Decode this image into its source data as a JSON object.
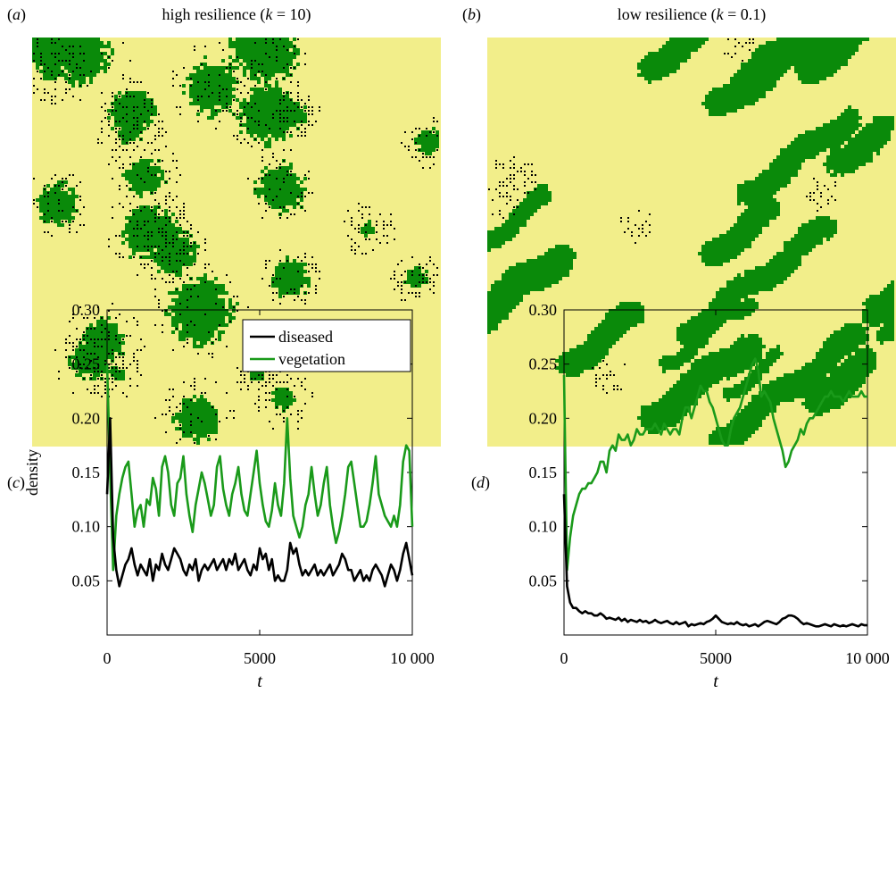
{
  "panels": {
    "a": {
      "label_open": "(",
      "label_letter": "a",
      "label_close": ")",
      "title_pre": "high resilience (",
      "title_var": "k",
      "title_post": " = 10)"
    },
    "b": {
      "label_open": "(",
      "label_letter": "b",
      "label_close": ")",
      "title_pre": "low resilience (",
      "title_var": "k",
      "title_post": " = 0.1)"
    },
    "c": {
      "label_open": "(",
      "label_letter": "c",
      "label_close": ")"
    },
    "d": {
      "label_open": "(",
      "label_letter": "d",
      "label_close": ")"
    }
  },
  "colors": {
    "background_cell": "#f2ee8a",
    "vegetation": "#0a8a0a",
    "diseased": "#000000",
    "vegetation_line": "#1a9a1a",
    "diseased_line": "#000000"
  },
  "chart_data": [
    {
      "id": "c",
      "type": "line",
      "xlabel": "t",
      "ylabel": "density",
      "xlim": [
        0,
        10000
      ],
      "ylim": [
        0,
        0.3
      ],
      "xticks": [
        0,
        5000,
        10000
      ],
      "xtick_labels": [
        "0",
        "5000",
        "10 000"
      ],
      "yticks": [
        0.05,
        0.1,
        0.15,
        0.2,
        0.25,
        0.3
      ],
      "ytick_labels": [
        "0.05",
        "0.10",
        "0.15",
        "0.20",
        "0.25",
        "0.30"
      ],
      "legend": {
        "position": "top-right",
        "entries": [
          "diseased",
          "vegetation"
        ]
      },
      "x": [
        0,
        100,
        200,
        300,
        400,
        500,
        600,
        700,
        800,
        900,
        1000,
        1100,
        1200,
        1300,
        1400,
        1500,
        1600,
        1700,
        1800,
        1900,
        2000,
        2100,
        2200,
        2300,
        2400,
        2500,
        2600,
        2700,
        2800,
        2900,
        3000,
        3100,
        3200,
        3300,
        3400,
        3500,
        3600,
        3700,
        3800,
        3900,
        4000,
        4100,
        4200,
        4300,
        4400,
        4500,
        4600,
        4700,
        4800,
        4900,
        5000,
        5100,
        5200,
        5300,
        5400,
        5500,
        5600,
        5700,
        5800,
        5900,
        6000,
        6100,
        6200,
        6300,
        6400,
        6500,
        6600,
        6700,
        6800,
        6900,
        7000,
        7100,
        7200,
        7300,
        7400,
        7500,
        7600,
        7700,
        7800,
        7900,
        8000,
        8100,
        8200,
        8300,
        8400,
        8500,
        8600,
        8700,
        8800,
        8900,
        9000,
        9100,
        9200,
        9300,
        9400,
        9500,
        9600,
        9700,
        9800,
        9900,
        10000
      ],
      "series": [
        {
          "name": "diseased",
          "values": [
            0.13,
            0.2,
            0.09,
            0.06,
            0.045,
            0.055,
            0.065,
            0.07,
            0.08,
            0.065,
            0.055,
            0.065,
            0.06,
            0.055,
            0.07,
            0.05,
            0.065,
            0.06,
            0.075,
            0.065,
            0.06,
            0.07,
            0.08,
            0.075,
            0.07,
            0.06,
            0.055,
            0.065,
            0.06,
            0.07,
            0.05,
            0.06,
            0.065,
            0.06,
            0.065,
            0.07,
            0.06,
            0.065,
            0.07,
            0.06,
            0.07,
            0.065,
            0.075,
            0.06,
            0.065,
            0.07,
            0.06,
            0.055,
            0.065,
            0.06,
            0.08,
            0.07,
            0.075,
            0.06,
            0.07,
            0.05,
            0.055,
            0.05,
            0.05,
            0.06,
            0.085,
            0.075,
            0.08,
            0.065,
            0.055,
            0.06,
            0.055,
            0.06,
            0.065,
            0.055,
            0.06,
            0.055,
            0.06,
            0.065,
            0.055,
            0.06,
            0.065,
            0.075,
            0.07,
            0.06,
            0.06,
            0.05,
            0.055,
            0.06,
            0.05,
            0.055,
            0.05,
            0.06,
            0.065,
            0.06,
            0.055,
            0.045,
            0.055,
            0.065,
            0.06,
            0.05,
            0.06,
            0.075,
            0.085,
            0.07,
            0.055
          ]
        },
        {
          "name": "vegetation",
          "values": [
            0.25,
            0.15,
            0.06,
            0.11,
            0.13,
            0.145,
            0.155,
            0.16,
            0.13,
            0.1,
            0.115,
            0.12,
            0.1,
            0.125,
            0.12,
            0.145,
            0.135,
            0.11,
            0.155,
            0.165,
            0.15,
            0.12,
            0.11,
            0.14,
            0.145,
            0.165,
            0.13,
            0.11,
            0.095,
            0.12,
            0.135,
            0.15,
            0.14,
            0.125,
            0.11,
            0.12,
            0.155,
            0.165,
            0.135,
            0.12,
            0.11,
            0.13,
            0.14,
            0.155,
            0.13,
            0.115,
            0.11,
            0.13,
            0.15,
            0.17,
            0.14,
            0.12,
            0.105,
            0.1,
            0.115,
            0.14,
            0.12,
            0.11,
            0.14,
            0.2,
            0.145,
            0.11,
            0.1,
            0.09,
            0.1,
            0.12,
            0.13,
            0.155,
            0.13,
            0.11,
            0.12,
            0.14,
            0.155,
            0.12,
            0.1,
            0.085,
            0.095,
            0.11,
            0.13,
            0.155,
            0.16,
            0.14,
            0.12,
            0.1,
            0.1,
            0.105,
            0.12,
            0.14,
            0.165,
            0.13,
            0.12,
            0.11,
            0.105,
            0.1,
            0.11,
            0.1,
            0.12,
            0.16,
            0.175,
            0.17,
            0.1
          ]
        }
      ]
    },
    {
      "id": "d",
      "type": "line",
      "xlabel": "t",
      "ylabel": "",
      "xlim": [
        0,
        10000
      ],
      "ylim": [
        0,
        0.3
      ],
      "xticks": [
        0,
        5000,
        10000
      ],
      "xtick_labels": [
        "0",
        "5000",
        "10 000"
      ],
      "yticks": [
        0.05,
        0.1,
        0.15,
        0.2,
        0.25,
        0.3
      ],
      "ytick_labels": [
        "0.05",
        "0.10",
        "0.15",
        "0.20",
        "0.25",
        "0.30"
      ],
      "x": [
        0,
        100,
        200,
        300,
        400,
        500,
        600,
        700,
        800,
        900,
        1000,
        1100,
        1200,
        1300,
        1400,
        1500,
        1600,
        1700,
        1800,
        1900,
        2000,
        2100,
        2200,
        2300,
        2400,
        2500,
        2600,
        2700,
        2800,
        2900,
        3000,
        3100,
        3200,
        3300,
        3400,
        3500,
        3600,
        3700,
        3800,
        3900,
        4000,
        4100,
        4200,
        4300,
        4400,
        4500,
        4600,
        4700,
        4800,
        4900,
        5000,
        5100,
        5200,
        5300,
        5400,
        5500,
        5600,
        5700,
        5800,
        5900,
        6000,
        6100,
        6200,
        6300,
        6400,
        6500,
        6600,
        6700,
        6800,
        6900,
        7000,
        7100,
        7200,
        7300,
        7400,
        7500,
        7600,
        7700,
        7800,
        7900,
        8000,
        8100,
        8200,
        8300,
        8400,
        8500,
        8600,
        8700,
        8800,
        8900,
        9000,
        9100,
        9200,
        9300,
        9400,
        9500,
        9600,
        9700,
        9800,
        9900,
        10000
      ],
      "series": [
        {
          "name": "diseased",
          "values": [
            0.13,
            0.045,
            0.03,
            0.025,
            0.025,
            0.022,
            0.02,
            0.022,
            0.02,
            0.02,
            0.018,
            0.018,
            0.02,
            0.018,
            0.015,
            0.016,
            0.015,
            0.014,
            0.016,
            0.013,
            0.015,
            0.012,
            0.014,
            0.013,
            0.012,
            0.014,
            0.012,
            0.013,
            0.011,
            0.012,
            0.014,
            0.012,
            0.011,
            0.012,
            0.013,
            0.011,
            0.01,
            0.012,
            0.01,
            0.011,
            0.012,
            0.008,
            0.01,
            0.009,
            0.01,
            0.011,
            0.01,
            0.012,
            0.013,
            0.015,
            0.018,
            0.015,
            0.012,
            0.011,
            0.01,
            0.011,
            0.01,
            0.012,
            0.01,
            0.009,
            0.01,
            0.008,
            0.009,
            0.01,
            0.008,
            0.01,
            0.012,
            0.013,
            0.012,
            0.011,
            0.01,
            0.012,
            0.015,
            0.016,
            0.018,
            0.018,
            0.017,
            0.015,
            0.012,
            0.01,
            0.011,
            0.01,
            0.009,
            0.008,
            0.008,
            0.009,
            0.01,
            0.009,
            0.008,
            0.01,
            0.009,
            0.008,
            0.009,
            0.008,
            0.009,
            0.01,
            0.009,
            0.008,
            0.01,
            0.009,
            0.009
          ]
        },
        {
          "name": "vegetation",
          "values": [
            0.24,
            0.06,
            0.09,
            0.11,
            0.12,
            0.13,
            0.135,
            0.135,
            0.14,
            0.14,
            0.145,
            0.15,
            0.16,
            0.16,
            0.15,
            0.17,
            0.175,
            0.17,
            0.185,
            0.18,
            0.18,
            0.185,
            0.175,
            0.18,
            0.19,
            0.185,
            0.185,
            0.19,
            0.19,
            0.19,
            0.195,
            0.19,
            0.185,
            0.195,
            0.19,
            0.185,
            0.19,
            0.19,
            0.185,
            0.2,
            0.21,
            0.21,
            0.2,
            0.21,
            0.22,
            0.23,
            0.225,
            0.225,
            0.215,
            0.21,
            0.2,
            0.19,
            0.18,
            0.175,
            0.175,
            0.19,
            0.2,
            0.205,
            0.21,
            0.22,
            0.23,
            0.24,
            0.25,
            0.255,
            0.245,
            0.22,
            0.225,
            0.22,
            0.215,
            0.2,
            0.19,
            0.18,
            0.17,
            0.155,
            0.16,
            0.17,
            0.175,
            0.18,
            0.19,
            0.185,
            0.195,
            0.2,
            0.2,
            0.205,
            0.21,
            0.215,
            0.22,
            0.22,
            0.225,
            0.22,
            0.22,
            0.22,
            0.215,
            0.22,
            0.225,
            0.22,
            0.22,
            0.22,
            0.225,
            0.22,
            0.22
          ]
        }
      ]
    }
  ]
}
